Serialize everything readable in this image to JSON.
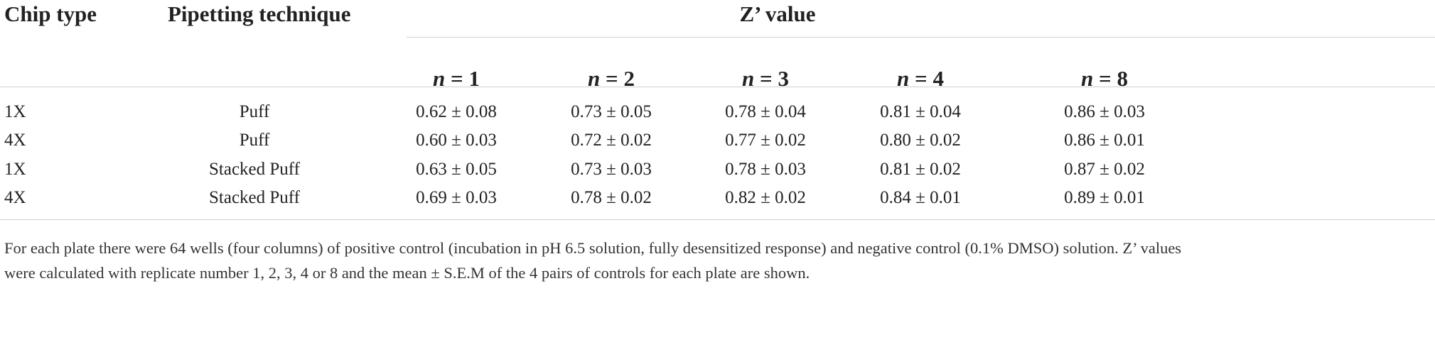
{
  "table": {
    "headers": {
      "chip_type": "Chip type",
      "pipetting_technique": "Pipetting technique",
      "group": "Z’ value",
      "n_var": "n",
      "n_values": [
        "= 1",
        "= 2",
        "= 3",
        "= 4",
        "= 8"
      ]
    },
    "rows": [
      {
        "chip": "1X",
        "technique": "Puff",
        "values": [
          "0.62 ± 0.08",
          "0.73 ± 0.05",
          "0.78 ± 0.04",
          "0.81 ± 0.04",
          "0.86 ± 0.03"
        ]
      },
      {
        "chip": "4X",
        "technique": "Puff",
        "values": [
          "0.60 ± 0.03",
          "0.72 ± 0.02",
          "0.77 ± 0.02",
          "0.80 ± 0.02",
          "0.86 ± 0.01"
        ]
      },
      {
        "chip": "1X",
        "technique": "Stacked Puff",
        "values": [
          "0.63 ± 0.05",
          "0.73 ± 0.03",
          "0.78 ± 0.03",
          "0.81 ± 0.02",
          "0.87 ± 0.02"
        ]
      },
      {
        "chip": "4X",
        "technique": "Stacked Puff",
        "values": [
          "0.69 ± 0.03",
          "0.78 ± 0.02",
          "0.82 ± 0.02",
          "0.84 ± 0.01",
          "0.89 ± 0.01"
        ]
      }
    ],
    "footnote": [
      "For each plate there were 64 wells (four columns) of positive control (incubation in pH 6.5 solution, fully desensitized response) and negative control (0.1% DMSO) solution. Z’ values",
      "were calculated with replicate number 1, 2, 3, 4 or 8 and the mean ± S.E.M of the 4 pairs of controls for each plate are shown."
    ]
  }
}
